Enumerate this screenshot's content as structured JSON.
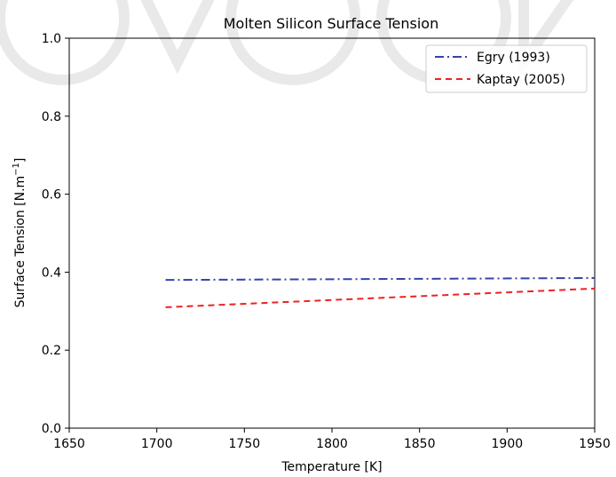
{
  "chart_data": {
    "type": "line",
    "title": "Molten Silicon Surface Tension",
    "xlabel": "Temperature [K]",
    "ylabel_main": "Surface Tension [N.m",
    "ylabel_sup": "−1",
    "ylabel_end": "]",
    "xlim": [
      1650,
      1950
    ],
    "ylim": [
      0.0,
      1.0
    ],
    "xticks": [
      1650,
      1700,
      1750,
      1800,
      1850,
      1900,
      1950
    ],
    "xtick_labels": [
      "1650",
      "1700",
      "1750",
      "1800",
      "1850",
      "1900",
      "1950"
    ],
    "yticks": [
      0.0,
      0.2,
      0.4,
      0.6,
      0.8,
      1.0
    ],
    "ytick_labels": [
      "0.0",
      "0.2",
      "0.4",
      "0.6",
      "0.8",
      "1.0"
    ],
    "grid": false,
    "legend_position": "top-right",
    "series": [
      {
        "name": "Egry (1993)",
        "color": "#3344aa",
        "style": "dashdot",
        "x": [
          1705,
          1950
        ],
        "y": [
          0.38,
          0.385
        ]
      },
      {
        "name": "Kaptay (2005)",
        "color": "#ee2222",
        "style": "dashed",
        "x": [
          1705,
          1950
        ],
        "y": [
          0.31,
          0.358
        ]
      }
    ]
  }
}
